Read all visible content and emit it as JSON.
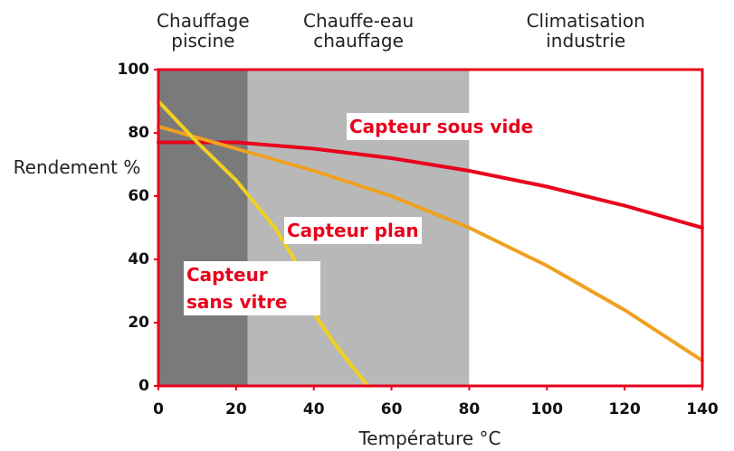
{
  "chart_data": {
    "type": "line",
    "xlabel": "Température °C",
    "ylabel": "Rendement %",
    "xlim": [
      0,
      140
    ],
    "ylim": [
      0,
      100
    ],
    "xticks": [
      0,
      20,
      40,
      60,
      80,
      100,
      120,
      140
    ],
    "yticks": [
      0,
      20,
      40,
      60,
      80,
      100
    ],
    "regions": [
      {
        "label": "Chauffage piscine",
        "from": 0,
        "to": 23,
        "color": "#7a7a7a"
      },
      {
        "label": "Chauffe-eau chauffage",
        "from": 23,
        "to": 80,
        "color": "#b8b8b8"
      },
      {
        "label": "Climatisation industrie",
        "from": 80,
        "to": 140,
        "color": "#ffffff"
      }
    ],
    "series": [
      {
        "name": "Capteur sous vide",
        "color": "#e8001c",
        "x": [
          0,
          20,
          40,
          60,
          80,
          100,
          120,
          140
        ],
        "values": [
          77,
          77,
          75,
          72,
          68,
          63,
          57,
          50
        ]
      },
      {
        "name": "Capteur plan",
        "color": "#f0a020",
        "x": [
          0,
          20,
          40,
          60,
          80,
          100,
          120,
          140
        ],
        "values": [
          82,
          75,
          68,
          60,
          50,
          38,
          24,
          8
        ]
      },
      {
        "name": "Capteur sans vitre",
        "color": "#f2d020",
        "x": [
          0,
          10,
          20,
          30,
          35,
          40,
          45,
          50,
          54
        ],
        "values": [
          90,
          77,
          65,
          50,
          40,
          23,
          14,
          6,
          0
        ]
      }
    ]
  }
}
